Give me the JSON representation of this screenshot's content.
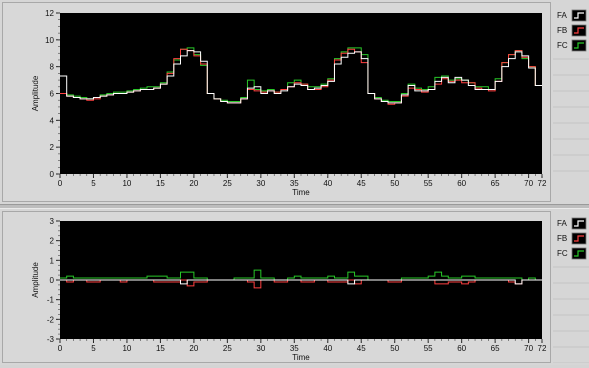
{
  "chart_data": [
    {
      "type": "line",
      "xlabel": "Time",
      "ylabel": "Amplitude",
      "xlim": [
        0,
        72
      ],
      "ylim": [
        0,
        12
      ],
      "x_ticks": [
        "0",
        "5",
        "10",
        "15",
        "20",
        "25",
        "30",
        "35",
        "40",
        "45",
        "50",
        "55",
        "60",
        "65",
        "70",
        "72"
      ],
      "y_ticks": [
        "0",
        "2",
        "4",
        "6",
        "8",
        "10",
        "12"
      ],
      "x_values": [
        0,
        1,
        2,
        3,
        4,
        5,
        6,
        7,
        8,
        9,
        10,
        11,
        12,
        13,
        14,
        15,
        16,
        17,
        18,
        19,
        20,
        21,
        22,
        23,
        24,
        25,
        26,
        27,
        28,
        29,
        30,
        31,
        32,
        33,
        34,
        35,
        36,
        37,
        38,
        39,
        40,
        41,
        42,
        43,
        44,
        45,
        46,
        47,
        48,
        49,
        50,
        51,
        52,
        53,
        54,
        55,
        56,
        57,
        58,
        59,
        60,
        61,
        62,
        63,
        64,
        65,
        66,
        67,
        68,
        69,
        70,
        71
      ],
      "series": [
        {
          "name": "FA",
          "color": "#ffffff",
          "values": [
            7.3,
            5.8,
            5.7,
            5.6,
            5.6,
            5.7,
            5.8,
            5.9,
            6.0,
            6.0,
            6.1,
            6.2,
            6.3,
            6.3,
            6.4,
            6.7,
            7.3,
            8.2,
            8.8,
            9.2,
            9.1,
            8.4,
            6.0,
            5.6,
            5.4,
            5.3,
            5.3,
            5.6,
            6.4,
            6.5,
            6.0,
            6.2,
            6.0,
            6.2,
            6.5,
            6.7,
            6.6,
            6.3,
            6.4,
            6.6,
            6.9,
            8.2,
            8.7,
            9.0,
            9.1,
            8.6,
            6.0,
            5.6,
            5.4,
            5.3,
            5.3,
            5.9,
            6.6,
            6.2,
            6.2,
            6.3,
            6.9,
            7.2,
            6.8,
            7.2,
            7.0,
            6.6,
            6.3,
            6.3,
            6.3,
            6.9,
            8.0,
            8.6,
            9.1,
            8.8,
            7.9,
            6.6
          ]
        },
        {
          "name": "FB",
          "color": "#ff4040",
          "values": [
            6.0,
            5.8,
            5.7,
            5.6,
            5.5,
            5.6,
            5.8,
            5.9,
            6.0,
            6.0,
            6.1,
            6.2,
            6.3,
            6.3,
            6.4,
            6.7,
            7.5,
            8.6,
            9.3,
            9.2,
            8.8,
            8.2,
            6.0,
            5.6,
            5.4,
            5.3,
            5.3,
            5.6,
            6.3,
            6.2,
            6.1,
            6.2,
            6.1,
            6.3,
            6.5,
            6.8,
            6.7,
            6.3,
            6.3,
            6.5,
            7.0,
            8.5,
            9.0,
            9.3,
            9.1,
            8.3,
            6.0,
            5.6,
            5.4,
            5.2,
            5.3,
            5.8,
            6.4,
            6.3,
            6.1,
            6.3,
            6.7,
            7.1,
            6.9,
            7.0,
            6.8,
            6.8,
            6.4,
            6.3,
            6.2,
            6.9,
            8.3,
            8.9,
            9.2,
            8.7,
            8.0,
            6.6
          ]
        },
        {
          "name": "FC",
          "color": "#28c828",
          "values": [
            6.0,
            5.9,
            5.8,
            5.7,
            5.6,
            5.7,
            5.9,
            6.0,
            6.1,
            6.1,
            6.2,
            6.3,
            6.4,
            6.5,
            6.5,
            6.8,
            7.6,
            8.5,
            9.3,
            9.4,
            8.9,
            8.1,
            6.0,
            5.6,
            5.5,
            5.4,
            5.4,
            5.7,
            7.0,
            6.3,
            6.2,
            6.3,
            6.1,
            6.3,
            6.8,
            7.0,
            6.7,
            6.5,
            6.5,
            6.7,
            7.1,
            8.6,
            9.1,
            9.4,
            9.4,
            8.9,
            6.0,
            5.7,
            5.5,
            5.4,
            5.4,
            6.0,
            6.7,
            6.4,
            6.3,
            6.5,
            7.2,
            7.3,
            7.0,
            7.1,
            7.0,
            6.8,
            6.5,
            6.5,
            6.3,
            7.1,
            8.3,
            8.9,
            9.2,
            8.6,
            8.0,
            6.6
          ]
        }
      ],
      "legend": [
        "FA",
        "FB",
        "FC"
      ],
      "legend_position": "right",
      "grid": false,
      "background": "#000000"
    },
    {
      "type": "line",
      "xlabel": "Time",
      "ylabel": "Amplitude",
      "xlim": [
        0,
        72
      ],
      "ylim": [
        -3,
        3
      ],
      "x_ticks": [
        "0",
        "5",
        "10",
        "15",
        "20",
        "25",
        "30",
        "35",
        "40",
        "45",
        "50",
        "55",
        "60",
        "65",
        "70",
        "72"
      ],
      "y_ticks": [
        "-3",
        "-2",
        "-1",
        "0",
        "1",
        "2",
        "3"
      ],
      "x_values": [
        0,
        1,
        2,
        3,
        4,
        5,
        6,
        7,
        8,
        9,
        10,
        11,
        12,
        13,
        14,
        15,
        16,
        17,
        18,
        19,
        20,
        21,
        22,
        23,
        24,
        25,
        26,
        27,
        28,
        29,
        30,
        31,
        32,
        33,
        34,
        35,
        36,
        37,
        38,
        39,
        40,
        41,
        42,
        43,
        44,
        45,
        46,
        47,
        48,
        49,
        50,
        51,
        52,
        53,
        54,
        55,
        56,
        57,
        58,
        59,
        60,
        61,
        62,
        63,
        64,
        65,
        66,
        67,
        68,
        69,
        70,
        71
      ],
      "series": [
        {
          "name": "FA",
          "color": "#ffffff",
          "values": [
            0,
            0,
            0,
            0,
            0,
            0,
            0,
            0,
            0,
            0,
            0,
            0,
            0,
            0,
            0,
            0,
            0,
            0,
            -0.2,
            0,
            0,
            0,
            0,
            0,
            0,
            0,
            0,
            0,
            0,
            0,
            0,
            0,
            0,
            0,
            0,
            0,
            0,
            0,
            0,
            0,
            0,
            0,
            0,
            -0.2,
            0,
            0,
            0,
            0,
            0,
            0,
            0,
            0,
            0,
            0,
            0,
            0,
            0,
            0,
            0,
            0,
            0,
            0,
            0,
            0,
            0,
            0,
            0,
            0,
            -0.2,
            0,
            0,
            0
          ]
        },
        {
          "name": "FB",
          "color": "#ff4040",
          "values": [
            0,
            -0.1,
            0,
            0,
            -0.1,
            -0.1,
            0,
            0,
            0,
            -0.1,
            0,
            0,
            0,
            0,
            -0.1,
            -0.1,
            -0.1,
            -0.1,
            0,
            -0.3,
            -0.1,
            -0.1,
            0,
            0,
            0,
            0,
            0,
            0,
            -0.1,
            -0.4,
            0,
            0,
            -0.1,
            -0.1,
            0,
            0,
            -0.1,
            -0.1,
            0,
            0,
            -0.1,
            -0.1,
            -0.1,
            0,
            -0.2,
            0,
            0,
            0,
            0,
            -0.1,
            -0.1,
            0,
            0,
            0,
            0,
            0,
            -0.2,
            -0.2,
            -0.1,
            -0.1,
            -0.2,
            -0.1,
            0,
            0,
            0,
            0,
            0,
            -0.1,
            -0.2,
            0,
            0,
            0
          ]
        },
        {
          "name": "FC",
          "color": "#28c828",
          "values": [
            0.1,
            0.2,
            0.1,
            0.1,
            0.1,
            0.1,
            0.1,
            0.1,
            0.1,
            0.1,
            0.1,
            0.1,
            0.1,
            0.2,
            0.2,
            0.2,
            0.1,
            0.1,
            0.4,
            0.4,
            0.1,
            0.1,
            0,
            0,
            0,
            0,
            0.1,
            0.1,
            0.1,
            0.5,
            0.1,
            0.1,
            0,
            0,
            0.1,
            0.2,
            0.1,
            0.1,
            0.1,
            0.1,
            0.2,
            0.1,
            0.1,
            0.4,
            0.2,
            0.2,
            0,
            0,
            0,
            0,
            0,
            0.1,
            0.1,
            0.1,
            0.1,
            0.2,
            0.4,
            0.2,
            0.1,
            0.1,
            0.2,
            0.2,
            0.1,
            0.1,
            0.1,
            0.1,
            0.1,
            0.1,
            0.1,
            0,
            0.1,
            0
          ]
        }
      ],
      "legend": [
        "FA",
        "FB",
        "FC"
      ],
      "legend_position": "right",
      "grid": false,
      "background": "#000000"
    }
  ]
}
